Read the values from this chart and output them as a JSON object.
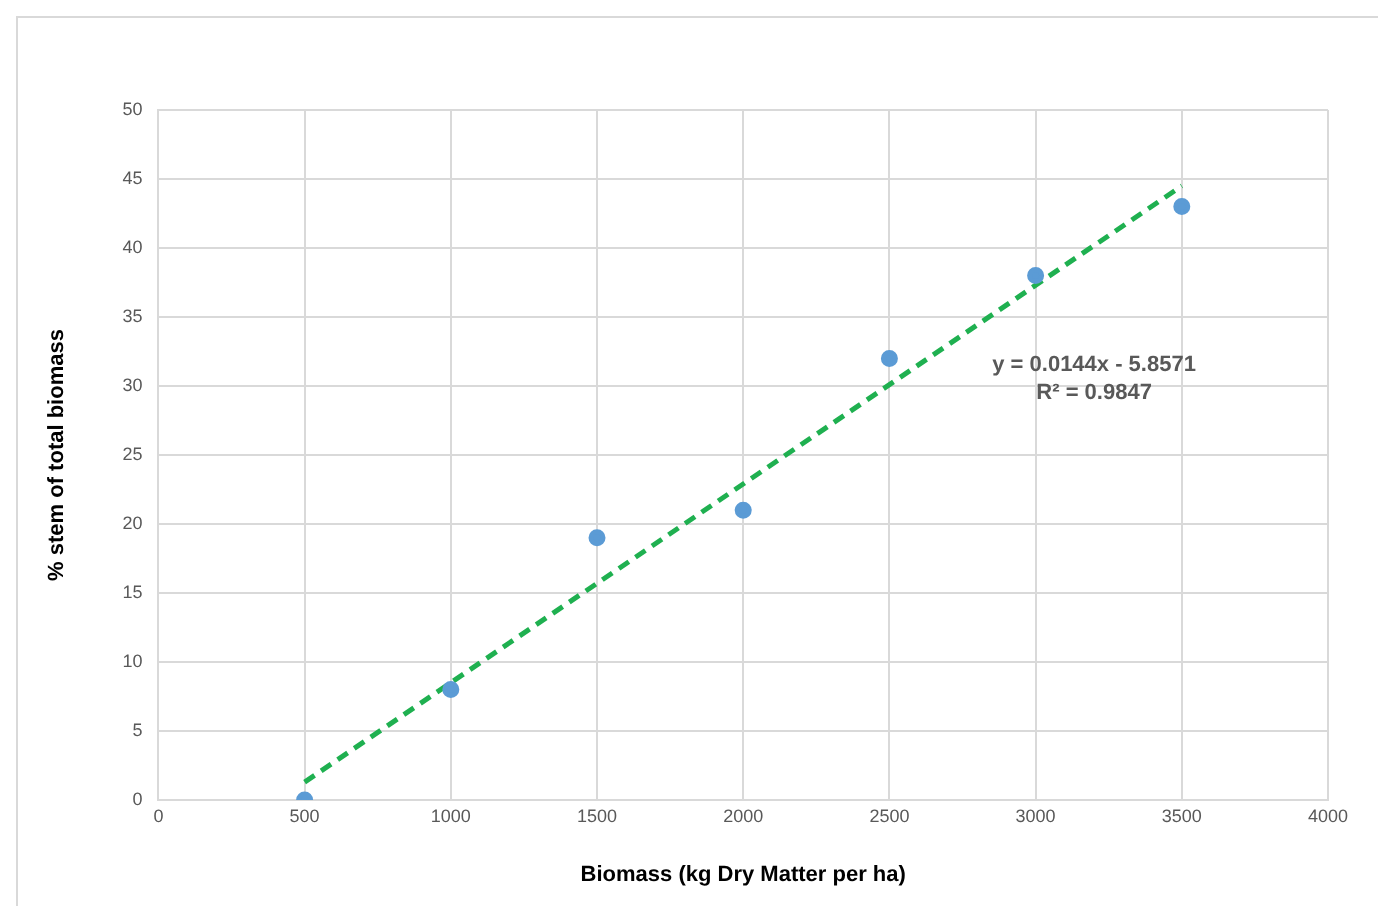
{
  "chart_data": {
    "type": "scatter",
    "xlabel": "Biomass (kg Dry Matter per ha)",
    "ylabel": "% stem of total biomass",
    "series": [
      {
        "type": "scatter",
        "color": "#5b9bd5",
        "marker": "circle",
        "x": [
          500,
          1000,
          1500,
          2000,
          2500,
          3000,
          3500
        ],
        "values": [
          0,
          8,
          19,
          21,
          32,
          38,
          43
        ]
      },
      {
        "type": "line",
        "color": "#1fb050",
        "marker": "none",
        "line_style": "dashed",
        "x": [
          500,
          3500
        ],
        "values": [
          1.3,
          44.5
        ]
      }
    ],
    "xlim": [
      0,
      4000
    ],
    "xticks": [
      0,
      500,
      1000,
      1500,
      2000,
      2500,
      3000,
      3500,
      4000
    ],
    "ylim": [
      0,
      50
    ],
    "yticks": [
      0,
      5,
      10,
      15,
      20,
      25,
      30,
      35,
      40,
      45,
      50
    ],
    "grid": true,
    "legend": false,
    "annotations": [
      "y = 0.0144x - 5.8571",
      "R² = 0.9847"
    ]
  }
}
